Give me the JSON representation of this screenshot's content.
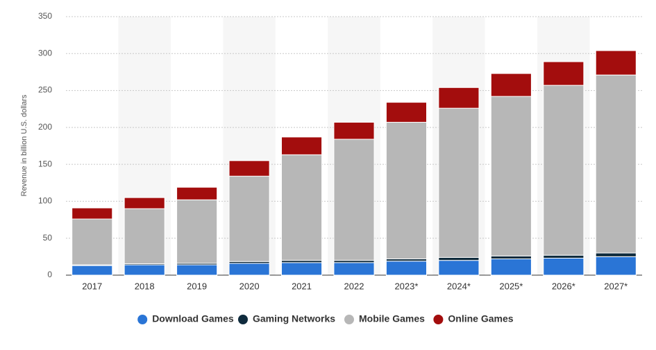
{
  "chart_data": {
    "type": "stacked-bar",
    "y_label": "Revenue in billion U.S. dollars",
    "categories": [
      "2017",
      "2018",
      "2019",
      "2020",
      "2021",
      "2022",
      "2023*",
      "2024*",
      "2025*",
      "2026*",
      "2027*"
    ],
    "series": [
      {
        "name": "Download Games",
        "color": "#2a75d6",
        "values": [
          13,
          14,
          14,
          16,
          17,
          17,
          19,
          20,
          22,
          23,
          25
        ]
      },
      {
        "name": "Gaming Networks",
        "color": "#0f2b3d",
        "values": [
          1,
          1.5,
          2,
          2.5,
          3,
          3,
          3,
          4,
          4,
          4,
          5
        ]
      },
      {
        "name": "Mobile Games",
        "color": "#b7b7b7",
        "values": [
          62,
          74.5,
          86,
          115.5,
          143,
          164,
          185,
          202,
          216,
          230,
          241
        ]
      },
      {
        "name": "Online Games",
        "color": "#a30d0d",
        "values": [
          15,
          15,
          17,
          21,
          24,
          23,
          27,
          28,
          31,
          32,
          33
        ]
      }
    ],
    "ylim": [
      0,
      350
    ],
    "yticks": [
      0,
      50,
      100,
      150,
      200,
      250,
      300,
      350
    ],
    "grid": true
  }
}
